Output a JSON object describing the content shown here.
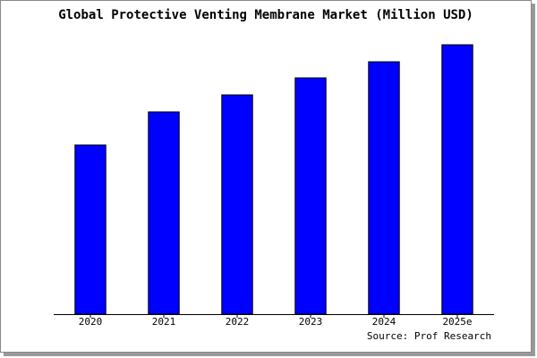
{
  "chart_data": {
    "type": "bar",
    "title": "Global Protective Venting Membrane Market (Million USD)",
    "categories": [
      "2020",
      "2021",
      "2022",
      "2023",
      "2024",
      "2025e"
    ],
    "values": [
      189,
      226,
      245,
      264,
      282,
      301
    ],
    "color": "#0000ff",
    "ylim": [
      0,
      303
    ],
    "source": "Source: Prof Research"
  }
}
